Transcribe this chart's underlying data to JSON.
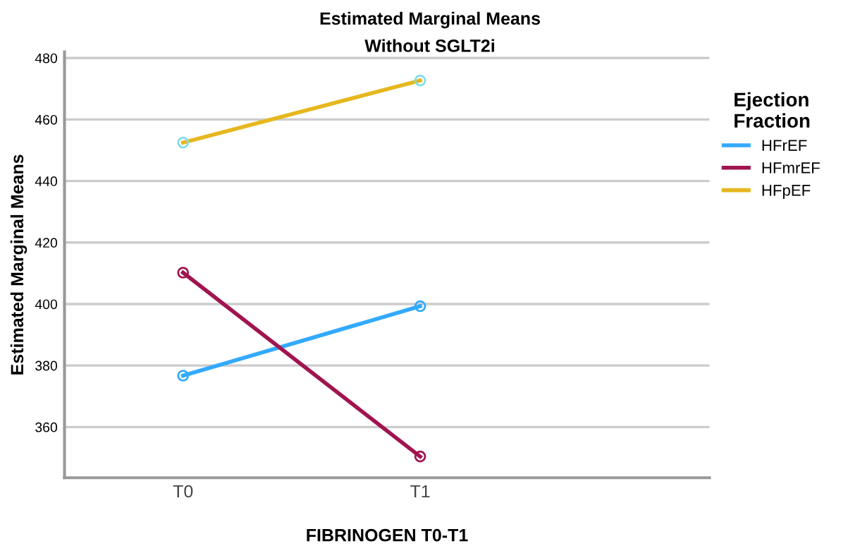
{
  "chart_data": {
    "type": "line",
    "title": "Estimated Marginal Means",
    "subtitle": "Without SGLT2i",
    "xlabel": "FIBRINOGEN T0-T1",
    "ylabel": "Estimated Marginal Means",
    "legend_title": "Ejection\nFraction",
    "categories": [
      "T0",
      "T1"
    ],
    "series": [
      {
        "name": "HFrEF",
        "color": "#33aaff",
        "values": [
          376.7,
          399.3
        ]
      },
      {
        "name": "HFmrEF",
        "color": "#a0154f",
        "values": [
          410.2,
          350.4
        ]
      },
      {
        "name": "HFpEF",
        "color": "#e6b71e",
        "values": [
          452.5,
          472.7
        ]
      }
    ],
    "ylim": [
      343.5,
      482
    ],
    "yticks": [
      360,
      380,
      400,
      420,
      440,
      460,
      480
    ],
    "grid": "y",
    "legend": "right",
    "marker": "circle",
    "line_style": "solid"
  }
}
